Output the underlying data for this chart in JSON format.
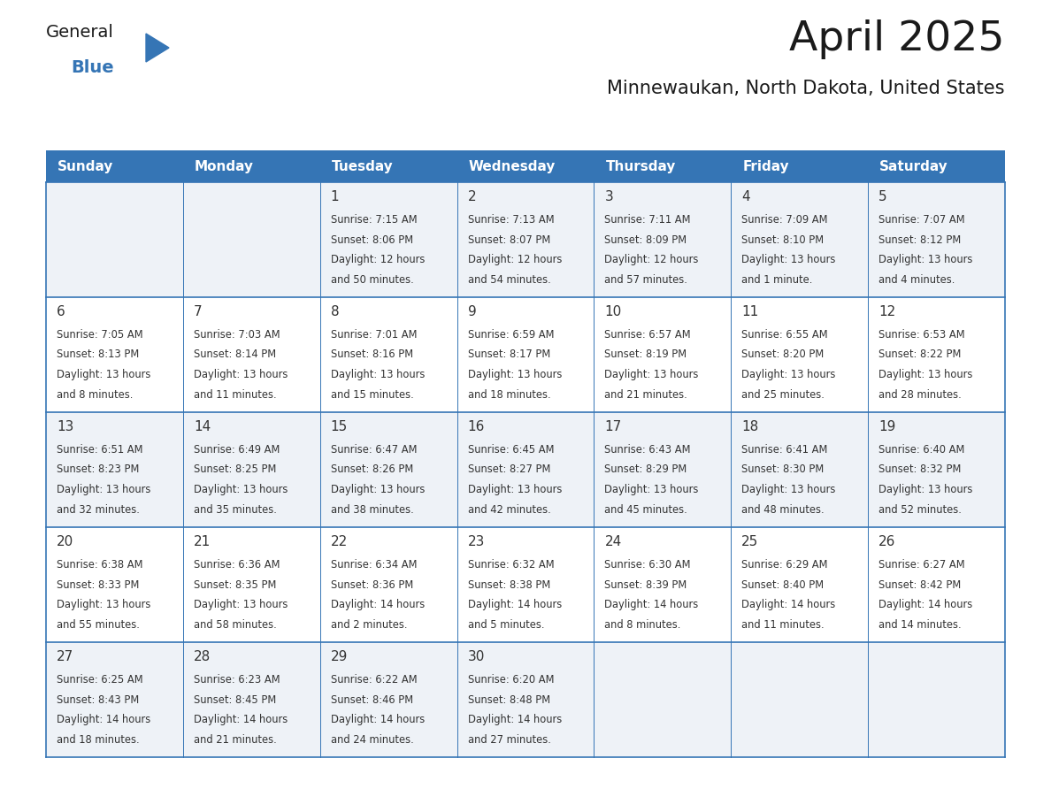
{
  "title": "April 2025",
  "subtitle": "Minnewaukan, North Dakota, United States",
  "header_bg_color": "#3575b5",
  "header_text_color": "#ffffff",
  "row_bg_even": "#eef2f7",
  "row_bg_odd": "#ffffff",
  "border_color": "#3575b5",
  "text_color": "#333333",
  "day_headers": [
    "Sunday",
    "Monday",
    "Tuesday",
    "Wednesday",
    "Thursday",
    "Friday",
    "Saturday"
  ],
  "weeks": [
    [
      {
        "day": "",
        "info": ""
      },
      {
        "day": "",
        "info": ""
      },
      {
        "day": "1",
        "info": "Sunrise: 7:15 AM\nSunset: 8:06 PM\nDaylight: 12 hours\nand 50 minutes."
      },
      {
        "day": "2",
        "info": "Sunrise: 7:13 AM\nSunset: 8:07 PM\nDaylight: 12 hours\nand 54 minutes."
      },
      {
        "day": "3",
        "info": "Sunrise: 7:11 AM\nSunset: 8:09 PM\nDaylight: 12 hours\nand 57 minutes."
      },
      {
        "day": "4",
        "info": "Sunrise: 7:09 AM\nSunset: 8:10 PM\nDaylight: 13 hours\nand 1 minute."
      },
      {
        "day": "5",
        "info": "Sunrise: 7:07 AM\nSunset: 8:12 PM\nDaylight: 13 hours\nand 4 minutes."
      }
    ],
    [
      {
        "day": "6",
        "info": "Sunrise: 7:05 AM\nSunset: 8:13 PM\nDaylight: 13 hours\nand 8 minutes."
      },
      {
        "day": "7",
        "info": "Sunrise: 7:03 AM\nSunset: 8:14 PM\nDaylight: 13 hours\nand 11 minutes."
      },
      {
        "day": "8",
        "info": "Sunrise: 7:01 AM\nSunset: 8:16 PM\nDaylight: 13 hours\nand 15 minutes."
      },
      {
        "day": "9",
        "info": "Sunrise: 6:59 AM\nSunset: 8:17 PM\nDaylight: 13 hours\nand 18 minutes."
      },
      {
        "day": "10",
        "info": "Sunrise: 6:57 AM\nSunset: 8:19 PM\nDaylight: 13 hours\nand 21 minutes."
      },
      {
        "day": "11",
        "info": "Sunrise: 6:55 AM\nSunset: 8:20 PM\nDaylight: 13 hours\nand 25 minutes."
      },
      {
        "day": "12",
        "info": "Sunrise: 6:53 AM\nSunset: 8:22 PM\nDaylight: 13 hours\nand 28 minutes."
      }
    ],
    [
      {
        "day": "13",
        "info": "Sunrise: 6:51 AM\nSunset: 8:23 PM\nDaylight: 13 hours\nand 32 minutes."
      },
      {
        "day": "14",
        "info": "Sunrise: 6:49 AM\nSunset: 8:25 PM\nDaylight: 13 hours\nand 35 minutes."
      },
      {
        "day": "15",
        "info": "Sunrise: 6:47 AM\nSunset: 8:26 PM\nDaylight: 13 hours\nand 38 minutes."
      },
      {
        "day": "16",
        "info": "Sunrise: 6:45 AM\nSunset: 8:27 PM\nDaylight: 13 hours\nand 42 minutes."
      },
      {
        "day": "17",
        "info": "Sunrise: 6:43 AM\nSunset: 8:29 PM\nDaylight: 13 hours\nand 45 minutes."
      },
      {
        "day": "18",
        "info": "Sunrise: 6:41 AM\nSunset: 8:30 PM\nDaylight: 13 hours\nand 48 minutes."
      },
      {
        "day": "19",
        "info": "Sunrise: 6:40 AM\nSunset: 8:32 PM\nDaylight: 13 hours\nand 52 minutes."
      }
    ],
    [
      {
        "day": "20",
        "info": "Sunrise: 6:38 AM\nSunset: 8:33 PM\nDaylight: 13 hours\nand 55 minutes."
      },
      {
        "day": "21",
        "info": "Sunrise: 6:36 AM\nSunset: 8:35 PM\nDaylight: 13 hours\nand 58 minutes."
      },
      {
        "day": "22",
        "info": "Sunrise: 6:34 AM\nSunset: 8:36 PM\nDaylight: 14 hours\nand 2 minutes."
      },
      {
        "day": "23",
        "info": "Sunrise: 6:32 AM\nSunset: 8:38 PM\nDaylight: 14 hours\nand 5 minutes."
      },
      {
        "day": "24",
        "info": "Sunrise: 6:30 AM\nSunset: 8:39 PM\nDaylight: 14 hours\nand 8 minutes."
      },
      {
        "day": "25",
        "info": "Sunrise: 6:29 AM\nSunset: 8:40 PM\nDaylight: 14 hours\nand 11 minutes."
      },
      {
        "day": "26",
        "info": "Sunrise: 6:27 AM\nSunset: 8:42 PM\nDaylight: 14 hours\nand 14 minutes."
      }
    ],
    [
      {
        "day": "27",
        "info": "Sunrise: 6:25 AM\nSunset: 8:43 PM\nDaylight: 14 hours\nand 18 minutes."
      },
      {
        "day": "28",
        "info": "Sunrise: 6:23 AM\nSunset: 8:45 PM\nDaylight: 14 hours\nand 21 minutes."
      },
      {
        "day": "29",
        "info": "Sunrise: 6:22 AM\nSunset: 8:46 PM\nDaylight: 14 hours\nand 24 minutes."
      },
      {
        "day": "30",
        "info": "Sunrise: 6:20 AM\nSunset: 8:48 PM\nDaylight: 14 hours\nand 27 minutes."
      },
      {
        "day": "",
        "info": ""
      },
      {
        "day": "",
        "info": ""
      },
      {
        "day": "",
        "info": ""
      }
    ]
  ],
  "logo_general_color": "#1a1a1a",
  "logo_blue_color": "#3575b5",
  "logo_triangle_color": "#3575b5",
  "title_color": "#1a1a1a",
  "subtitle_color": "#1a1a1a"
}
